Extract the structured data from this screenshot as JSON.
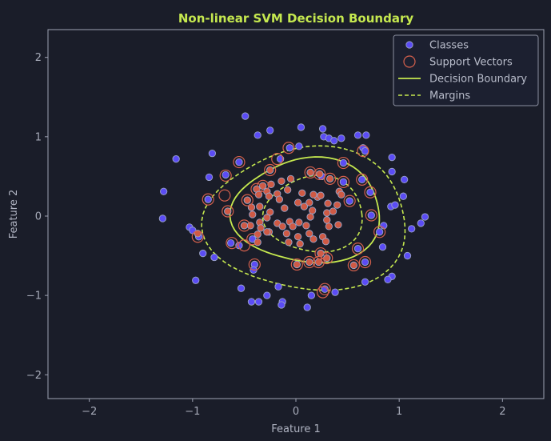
{
  "chart_data": {
    "type": "scatter",
    "title": "Non-linear SVM Decision Boundary",
    "xlabel": "Feature 1",
    "ylabel": "Feature 2",
    "xlim": [
      -2.4,
      2.4
    ],
    "ylim": [
      -2.3,
      2.35
    ],
    "xticks": [
      -2,
      -1,
      0,
      1,
      2
    ],
    "yticks": [
      -2,
      -1,
      0,
      1,
      2
    ],
    "grid": false,
    "legend_position": "top-right",
    "colors": {
      "background": "#1a1d29",
      "outer_class": "#5b4cf5",
      "inner_class": "#cf5a45",
      "support_vector": "#d4604c",
      "boundary": "#c5e84f",
      "point_edge": "#9aa3c8"
    },
    "legend": [
      {
        "label": "Classes",
        "kind": "point"
      },
      {
        "label": "Support Vectors",
        "kind": "ring"
      },
      {
        "label": "Decision Boundary",
        "kind": "solid"
      },
      {
        "label": "Margins",
        "kind": "dashed"
      }
    ],
    "series": [
      {
        "points": [
          [
            -0.49,
            1.26
          ],
          [
            0.05,
            1.12
          ],
          [
            0.26,
            1.1
          ],
          [
            -0.25,
            1.08
          ],
          [
            -0.37,
            1.02
          ],
          [
            0.27,
            1.0
          ],
          [
            0.32,
            0.98
          ],
          [
            0.37,
            0.95
          ],
          [
            0.44,
            0.98
          ],
          [
            0.6,
            1.02
          ],
          [
            0.68,
            1.02
          ],
          [
            -0.81,
            0.79
          ],
          [
            -0.55,
            0.68
          ],
          [
            -0.15,
            0.72
          ],
          [
            -0.06,
            0.86
          ],
          [
            0.03,
            0.88
          ],
          [
            0.46,
            0.67
          ],
          [
            0.65,
            0.86
          ],
          [
            0.67,
            0.82
          ],
          [
            0.93,
            0.74
          ],
          [
            -1.16,
            0.72
          ],
          [
            -0.68,
            0.52
          ],
          [
            -0.84,
            0.49
          ],
          [
            0.93,
            0.56
          ],
          [
            1.05,
            0.46
          ],
          [
            -1.28,
            0.31
          ],
          [
            0.72,
            0.3
          ],
          [
            1.04,
            0.25
          ],
          [
            0.92,
            0.12
          ],
          [
            0.96,
            0.14
          ],
          [
            -0.85,
            0.21
          ],
          [
            0.73,
            0.01
          ],
          [
            1.21,
            -0.09
          ],
          [
            1.25,
            -0.01
          ],
          [
            -1.29,
            -0.03
          ],
          [
            -1.03,
            -0.14
          ],
          [
            -1.0,
            -0.18
          ],
          [
            -0.94,
            -0.26
          ],
          [
            0.85,
            -0.12
          ],
          [
            0.81,
            -0.2
          ],
          [
            1.12,
            -0.16
          ],
          [
            -0.42,
            -0.29
          ],
          [
            0.84,
            -0.39
          ],
          [
            0.6,
            -0.41
          ],
          [
            1.08,
            -0.5
          ],
          [
            -0.9,
            -0.47
          ],
          [
            -0.79,
            -0.52
          ],
          [
            0.67,
            -0.58
          ],
          [
            -0.4,
            -0.61
          ],
          [
            -0.41,
            -0.68
          ],
          [
            0.93,
            -0.76
          ],
          [
            -0.97,
            -0.81
          ],
          [
            0.89,
            -0.8
          ],
          [
            0.67,
            -0.83
          ],
          [
            -0.17,
            -0.89
          ],
          [
            -0.53,
            -0.91
          ],
          [
            0.28,
            -0.92
          ],
          [
            0.38,
            -0.96
          ],
          [
            -0.28,
            -1.0
          ],
          [
            0.15,
            -1.0
          ],
          [
            -0.43,
            -1.08
          ],
          [
            -0.36,
            -1.08
          ],
          [
            -0.13,
            -1.08
          ],
          [
            -0.14,
            -1.12
          ],
          [
            0.11,
            -1.15
          ],
          [
            0.25,
            0.5
          ],
          [
            0.46,
            0.43
          ],
          [
            0.52,
            0.19
          ],
          [
            0.64,
            0.46
          ],
          [
            -0.55,
            -0.37
          ],
          [
            -0.63,
            -0.34
          ]
        ]
      },
      {
        "points": [
          [
            -0.25,
            0.58
          ],
          [
            0.14,
            0.55
          ],
          [
            0.23,
            0.53
          ],
          [
            0.33,
            0.47
          ],
          [
            -0.32,
            0.38
          ],
          [
            -0.24,
            0.4
          ],
          [
            -0.14,
            0.44
          ],
          [
            -0.05,
            0.47
          ],
          [
            -0.38,
            0.34
          ],
          [
            -0.28,
            0.31
          ],
          [
            -0.18,
            0.28
          ],
          [
            -0.08,
            0.33
          ],
          [
            0.42,
            0.31
          ],
          [
            -0.36,
            0.27
          ],
          [
            -0.26,
            0.25
          ],
          [
            -0.16,
            0.21
          ],
          [
            0.02,
            0.17
          ],
          [
            0.13,
            0.17
          ],
          [
            0.21,
            0.24
          ],
          [
            0.31,
            0.16
          ],
          [
            0.4,
            0.14
          ],
          [
            -0.43,
            0.11
          ],
          [
            -0.35,
            0.12
          ],
          [
            -0.25,
            0.05
          ],
          [
            -0.11,
            0.1
          ],
          [
            0.08,
            0.12
          ],
          [
            0.16,
            0.07
          ],
          [
            0.3,
            0.04
          ],
          [
            0.36,
            0.06
          ],
          [
            -0.42,
            0.02
          ],
          [
            -0.35,
            -0.08
          ],
          [
            -0.28,
            -0.02
          ],
          [
            -0.18,
            -0.09
          ],
          [
            -0.06,
            -0.07
          ],
          [
            0.03,
            -0.08
          ],
          [
            0.14,
            -0.01
          ],
          [
            0.3,
            -0.05
          ],
          [
            -0.44,
            -0.12
          ],
          [
            -0.34,
            -0.15
          ],
          [
            -0.26,
            -0.2
          ],
          [
            -0.13,
            -0.13
          ],
          [
            -0.03,
            -0.13
          ],
          [
            0.1,
            -0.12
          ],
          [
            0.32,
            -0.13
          ],
          [
            0.41,
            -0.11
          ],
          [
            -0.37,
            -0.23
          ],
          [
            -0.28,
            -0.2
          ],
          [
            -0.09,
            -0.22
          ],
          [
            0.02,
            -0.26
          ],
          [
            0.13,
            -0.22
          ],
          [
            0.26,
            -0.26
          ],
          [
            0.17,
            -0.29
          ],
          [
            0.29,
            -0.32
          ],
          [
            -0.37,
            -0.33
          ],
          [
            -0.07,
            -0.33
          ],
          [
            0.04,
            -0.35
          ],
          [
            0.24,
            -0.47
          ],
          [
            0.3,
            -0.53
          ],
          [
            0.13,
            -0.58
          ],
          [
            0.22,
            -0.58
          ],
          [
            0.01,
            -0.61
          ],
          [
            0.56,
            -0.62
          ],
          [
            -0.47,
            0.2
          ],
          [
            -0.66,
            0.06
          ],
          [
            -0.5,
            -0.12
          ],
          [
            -0.95,
            -0.22
          ],
          [
            0.17,
            0.27
          ],
          [
            0.06,
            0.29
          ],
          [
            0.24,
            0.26
          ],
          [
            0.44,
            0.27
          ]
        ]
      }
    ],
    "support_vectors": [
      [
        -0.07,
        0.86
      ],
      [
        -0.18,
        0.72
      ],
      [
        -0.55,
        0.68
      ],
      [
        0.46,
        0.67
      ],
      [
        0.65,
        0.82
      ],
      [
        -0.25,
        0.58
      ],
      [
        0.14,
        0.55
      ],
      [
        0.23,
        0.53
      ],
      [
        0.33,
        0.47
      ],
      [
        -0.68,
        0.51
      ],
      [
        0.46,
        0.43
      ],
      [
        0.64,
        0.46
      ],
      [
        -0.32,
        0.38
      ],
      [
        -0.38,
        0.34
      ],
      [
        -0.69,
        0.26
      ],
      [
        -0.85,
        0.21
      ],
      [
        0.72,
        0.3
      ],
      [
        -0.47,
        0.2
      ],
      [
        0.52,
        0.19
      ],
      [
        -0.66,
        0.06
      ],
      [
        0.73,
        0.01
      ],
      [
        -0.5,
        -0.12
      ],
      [
        0.81,
        -0.2
      ],
      [
        -0.95,
        -0.26
      ],
      [
        -0.62,
        -0.34
      ],
      [
        -0.5,
        -0.37
      ],
      [
        -0.42,
        -0.29
      ],
      [
        0.6,
        -0.41
      ],
      [
        0.24,
        -0.47
      ],
      [
        0.3,
        -0.53
      ],
      [
        -0.4,
        -0.61
      ],
      [
        0.13,
        -0.58
      ],
      [
        0.22,
        -0.58
      ],
      [
        0.01,
        -0.61
      ],
      [
        0.56,
        -0.62
      ],
      [
        0.67,
        -0.58
      ],
      [
        0.28,
        -0.92
      ],
      [
        0.26,
        -0.96
      ]
    ]
  }
}
